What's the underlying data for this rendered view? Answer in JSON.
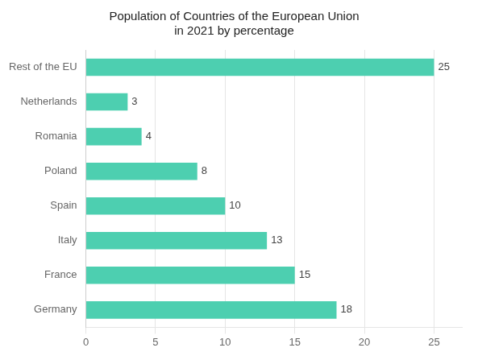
{
  "chart_data": {
    "type": "bar",
    "orientation": "horizontal",
    "title": "Population of Countries of the European Union\nin 2021 by percentage",
    "categories": [
      "Germany",
      "France",
      "Italy",
      "Spain",
      "Poland",
      "Romania",
      "Netherlands",
      "Rest of the EU"
    ],
    "values": [
      18,
      15,
      13,
      10,
      8,
      4,
      3,
      25
    ],
    "color": "#4dcfb0",
    "xlim": [
      0,
      27
    ],
    "xticks": [
      0,
      5,
      10,
      15,
      20,
      25
    ],
    "grid": true,
    "data_labels": true
  }
}
